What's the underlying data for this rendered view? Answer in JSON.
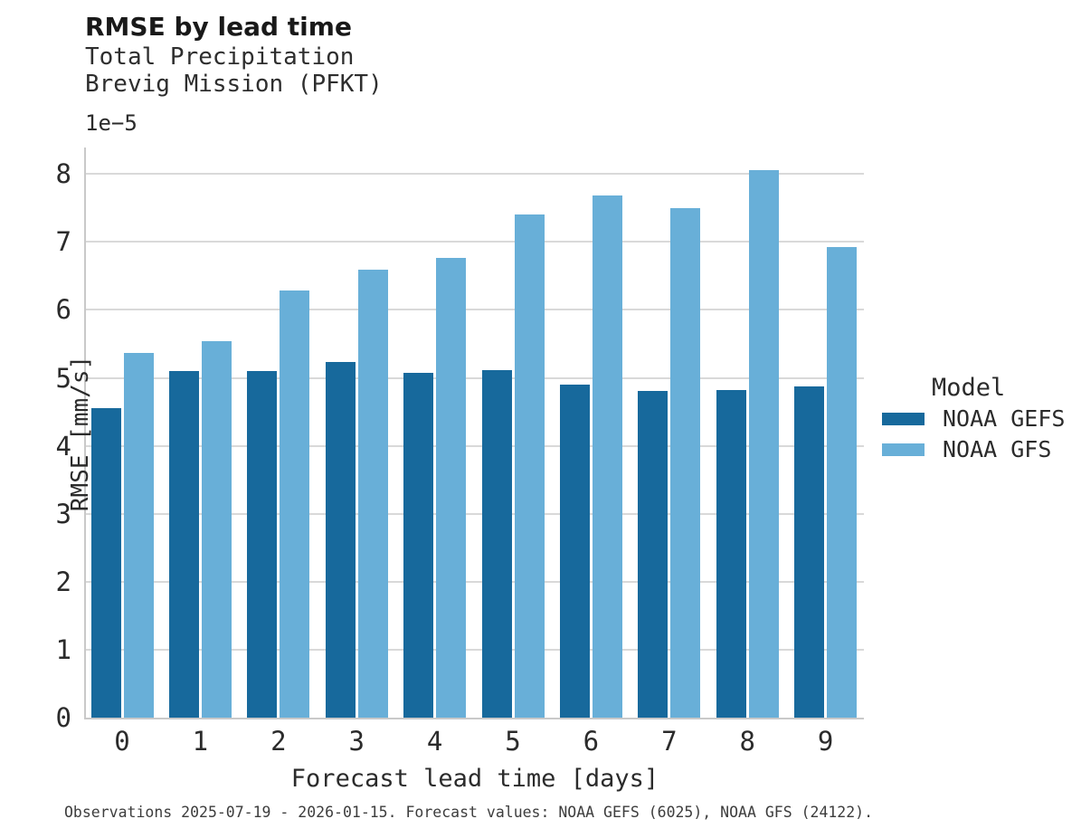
{
  "header": {
    "title": "RMSE by lead time",
    "subtitle_line1": "Total Precipitation",
    "subtitle_line2": "Brevig Mission (PFKT)"
  },
  "axes": {
    "y_offset_label": "1e−5",
    "y_label": "RMSE [mm/s]",
    "x_label": "Forecast lead time [days]"
  },
  "legend": {
    "title": "Model",
    "items": [
      {
        "label": "NOAA GEFS",
        "color": "#17699c"
      },
      {
        "label": "NOAA GFS",
        "color": "#68afd8"
      }
    ]
  },
  "footer": {
    "caption": "Observations 2025-07-19 - 2026-01-15. Forecast values: NOAA GEFS (6025), NOAA GFS (24122)."
  },
  "chart_data": {
    "type": "bar",
    "title": "RMSE by lead time",
    "subtitle": [
      "Total Precipitation",
      "Brevig Mission (PFKT)"
    ],
    "categories": [
      "0",
      "1",
      "2",
      "3",
      "4",
      "5",
      "6",
      "7",
      "8",
      "9"
    ],
    "series": [
      {
        "name": "NOAA GEFS",
        "color": "#17699c",
        "values": [
          4.56,
          5.1,
          5.1,
          5.23,
          5.07,
          5.12,
          4.9,
          4.81,
          4.82,
          4.87
        ]
      },
      {
        "name": "NOAA GFS",
        "color": "#68afd8",
        "values": [
          5.37,
          5.54,
          6.29,
          6.59,
          6.76,
          7.41,
          7.69,
          7.5,
          8.06,
          6.93
        ]
      }
    ],
    "value_scale": "1e-5",
    "value_units": "mm/s",
    "xlabel": "Forecast lead time [days]",
    "ylabel": "RMSE [mm/s]",
    "ylim": [
      0,
      8.39
    ],
    "yticks": [
      0,
      1,
      2,
      3,
      4,
      5,
      6,
      7,
      8
    ],
    "grid": "horizontal",
    "legend_title": "Model",
    "legend_position": "right",
    "colors": {
      "grid": "#d9d9d9",
      "spine": "#c9c9c9",
      "background": "#ffffff"
    }
  }
}
